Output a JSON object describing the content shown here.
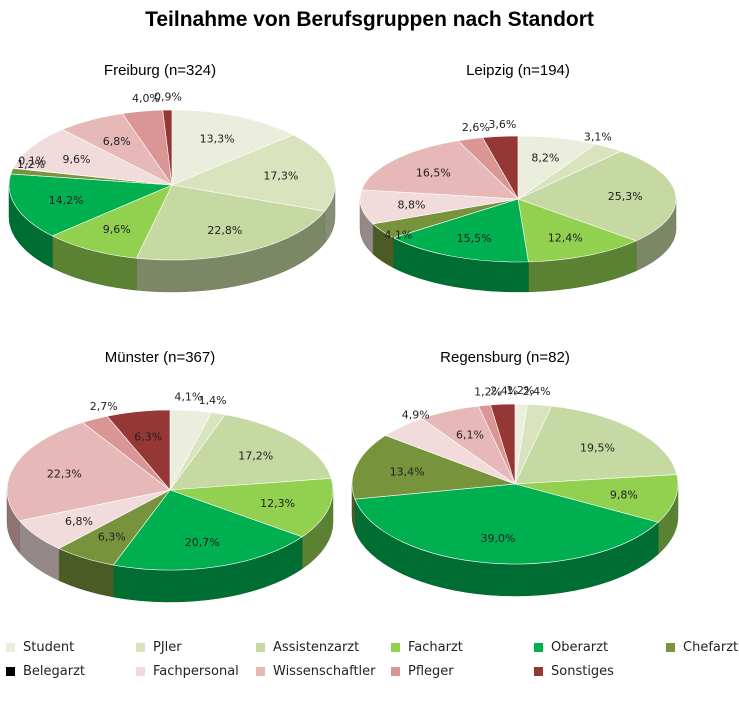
{
  "title": "Teilnahme von Berufsgruppen nach Standort",
  "legend": [
    {
      "name": "Student",
      "color": "#EBEEDC"
    },
    {
      "name": "PJler",
      "color": "#D9E4BE"
    },
    {
      "name": "Assistenzarzt",
      "color": "#C6D9A3"
    },
    {
      "name": "Facharzt",
      "color": "#92D050"
    },
    {
      "name": "Oberarzt",
      "color": "#00B050"
    },
    {
      "name": "Chefarzt",
      "color": "#77933C"
    },
    {
      "name": "Belegarzt",
      "color": "#000000"
    },
    {
      "name": "Fachpersonal",
      "color": "#F1DCDB"
    },
    {
      "name": "Wissenschaftler",
      "color": "#E6B9B8"
    },
    {
      "name": "Pfleger",
      "color": "#D99694"
    },
    {
      "name": "Sonstiges",
      "color": "#953735"
    }
  ],
  "chart_data": [
    {
      "type": "pie",
      "title": "Freiburg (n=324)",
      "categories": [
        "Student",
        "PJler",
        "Assistenzarzt",
        "Facharzt",
        "Oberarzt",
        "Chefarzt",
        "Belegarzt",
        "Fachpersonal",
        "Wissenschaftler",
        "Pfleger",
        "Sonstiges"
      ],
      "values": [
        13.3,
        17.3,
        22.8,
        9.6,
        14.2,
        1.2,
        0.1,
        9.6,
        6.8,
        4.0,
        0.9
      ],
      "labels": [
        "13,3%",
        "17,3%",
        "22,8%",
        "9,6%",
        "14,2%",
        "1,2%",
        "0,1%",
        "9,6%",
        "6,8%",
        "4,0%",
        "0,9%"
      ]
    },
    {
      "type": "pie",
      "title": "Leipzig (n=194)",
      "categories": [
        "Student",
        "PJler",
        "Assistenzarzt",
        "Facharzt",
        "Oberarzt",
        "Chefarzt",
        "Fachpersonal",
        "Wissenschaftler",
        "Pfleger",
        "Sonstiges"
      ],
      "values": [
        8.2,
        3.1,
        25.3,
        12.4,
        15.5,
        4.1,
        8.8,
        16.5,
        2.6,
        3.6
      ],
      "labels": [
        "8,2%",
        "3,1%",
        "25,3%",
        "12,4%",
        "15,5%",
        "4,1%",
        "8,8%",
        "16,5%",
        "2,6%",
        "3,6%"
      ]
    },
    {
      "type": "pie",
      "title": "Münster (n=367)",
      "categories": [
        "Student",
        "PJler",
        "Assistenzarzt",
        "Facharzt",
        "Oberarzt",
        "Chefarzt",
        "Fachpersonal",
        "Wissenschaftler",
        "Pfleger",
        "Sonstiges"
      ],
      "values": [
        4.1,
        1.4,
        17.2,
        12.3,
        20.7,
        6.3,
        6.8,
        22.3,
        2.7,
        6.3
      ],
      "labels": [
        "4,1%",
        "1,4%",
        "17,2%",
        "12,3%",
        "20,7%",
        "6,3%",
        "6,8%",
        "22,3%",
        "2,7%",
        "6,3%"
      ]
    },
    {
      "type": "pie",
      "title": "Regensburg (n=82)",
      "categories": [
        "Student",
        "PJler",
        "Assistenzarzt",
        "Facharzt",
        "Oberarzt",
        "Chefarzt",
        "Fachpersonal",
        "Wissenschaftler",
        "Pfleger",
        "Sonstiges"
      ],
      "values": [
        1.2,
        2.4,
        19.5,
        9.8,
        39.0,
        13.4,
        4.9,
        6.1,
        1.2,
        2.4
      ],
      "labels": [
        "1,2%",
        "2,4%",
        "19,5%",
        "9,8%",
        "39,0%",
        "13,4%",
        "4,9%",
        "6,1%",
        "1,2%",
        "2,4%"
      ]
    }
  ]
}
